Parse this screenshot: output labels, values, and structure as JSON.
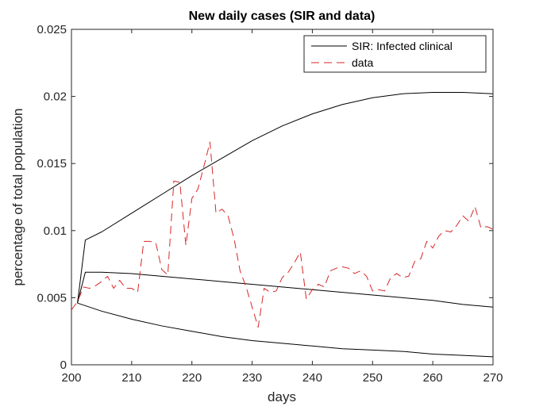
{
  "chart_data": {
    "type": "line",
    "title": "New daily cases (SIR and data)",
    "xlabel": "days",
    "ylabel": "percentage of total population",
    "xlim": [
      200,
      270
    ],
    "ylim": [
      0,
      0.025
    ],
    "xticks": [
      200,
      210,
      220,
      230,
      240,
      250,
      260,
      270
    ],
    "yticks": [
      0,
      0.005,
      0.01,
      0.015,
      0.02,
      0.025
    ],
    "ytick_labels": [
      "0",
      "0.005",
      "0.01",
      "0.015",
      "0.02",
      "0.025"
    ],
    "grid": false,
    "legend_position": "top-right",
    "legend": [
      {
        "label": "SIR: Infected clinical",
        "style": "solid",
        "color": "#000000"
      },
      {
        "label": "data",
        "style": "dashed",
        "color": "#d62728"
      }
    ],
    "series": [
      {
        "name": "SIR: Infected clinical",
        "color": "#000000",
        "style": "solid",
        "x": [
          201,
          202.3,
          205,
          210,
          215,
          220,
          225,
          230,
          235,
          240,
          245,
          250,
          255,
          260,
          265,
          270
        ],
        "values": [
          0.0046,
          0.0093,
          0.0099,
          0.0113,
          0.0127,
          0.0141,
          0.0154,
          0.0167,
          0.0178,
          0.0187,
          0.0194,
          0.0199,
          0.0202,
          0.0203,
          0.0203,
          0.0202
        ]
      },
      {
        "name": "SIR: Infected clinical",
        "color": "#000000",
        "style": "solid",
        "x": [
          201,
          202.3,
          205,
          210,
          215,
          220,
          225,
          230,
          235,
          240,
          245,
          250,
          255,
          260,
          265,
          270
        ],
        "values": [
          0.0046,
          0.0069,
          0.0069,
          0.0068,
          0.0066,
          0.0064,
          0.0062,
          0.006,
          0.0058,
          0.0056,
          0.0054,
          0.0052,
          0.005,
          0.0048,
          0.0045,
          0.0043
        ]
      },
      {
        "name": "SIR: Infected clinical",
        "color": "#000000",
        "style": "solid",
        "x": [
          201,
          205,
          210,
          215,
          220,
          225,
          230,
          235,
          240,
          245,
          250,
          255,
          260,
          265,
          270
        ],
        "values": [
          0.0046,
          0.004,
          0.0034,
          0.0029,
          0.0025,
          0.0021,
          0.0018,
          0.0016,
          0.0014,
          0.0012,
          0.0011,
          0.001,
          0.0008,
          0.0007,
          0.0006
        ]
      },
      {
        "name": "data",
        "color": "#d62728",
        "style": "dashed",
        "x": [
          200,
          201,
          202,
          203,
          204,
          205,
          206,
          207,
          208,
          209,
          210,
          211,
          212,
          213,
          214,
          215,
          216,
          217,
          218,
          219,
          220,
          221,
          222,
          223,
          224,
          225,
          226,
          227,
          228,
          229,
          230,
          231,
          232,
          233,
          234,
          235,
          236,
          237,
          238,
          239,
          240,
          241,
          242,
          243,
          244,
          245,
          246,
          247,
          248,
          249,
          250,
          251,
          252,
          253,
          254,
          255,
          256,
          257,
          258,
          259,
          260,
          261,
          262,
          263,
          264,
          265,
          266,
          267,
          268,
          269,
          270
        ],
        "values": [
          0.0041,
          0.0047,
          0.0058,
          0.0057,
          0.0059,
          0.0062,
          0.0066,
          0.0057,
          0.0063,
          0.0057,
          0.0057,
          0.0054,
          0.0092,
          0.0092,
          0.0091,
          0.0071,
          0.0067,
          0.0137,
          0.0136,
          0.0089,
          0.0124,
          0.0131,
          0.0148,
          0.0166,
          0.0113,
          0.0116,
          0.0111,
          0.0094,
          0.007,
          0.0058,
          0.0043,
          0.0028,
          0.0057,
          0.0054,
          0.0055,
          0.0065,
          0.0069,
          0.0076,
          0.0084,
          0.0049,
          0.0056,
          0.006,
          0.0058,
          0.007,
          0.0072,
          0.0073,
          0.0072,
          0.0068,
          0.007,
          0.0066,
          0.0055,
          0.0056,
          0.0055,
          0.0065,
          0.0068,
          0.0065,
          0.0066,
          0.0077,
          0.0079,
          0.0092,
          0.0087,
          0.0096,
          0.01,
          0.0099,
          0.0104,
          0.0111,
          0.0107,
          0.0118,
          0.0102,
          0.0103,
          0.0101
        ]
      }
    ]
  }
}
